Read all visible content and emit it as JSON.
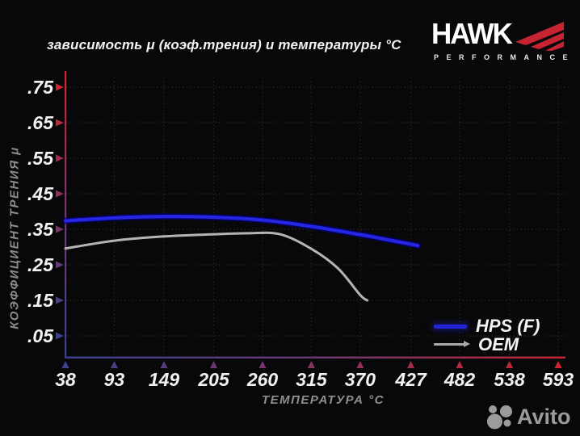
{
  "title": "зависимость μ (коэф.трения) и температуры °C",
  "logo": {
    "brand": "HAWK",
    "sub": "PERFORMANCE",
    "wing_color": "#c62430"
  },
  "watermark": {
    "label": "Avito",
    "color": "#9b9b9b"
  },
  "colors": {
    "background": "#08080a",
    "text": "#f2f2f2",
    "muted_label": "#8f8f8f",
    "axis_red": "#cf2433",
    "axis_blue": "#3a418f",
    "grid": "#2b2b2b",
    "grid_minor": "#191919",
    "hps_blue": "#2525e2",
    "oem_gray": "#b4b4b4"
  },
  "chart_data": {
    "type": "line",
    "title": "зависимость μ (коэф.трения) и температуры °C",
    "xlabel": "ТЕМПЕРАТУРА °C",
    "ylabel": "КОЭФФИЦИЕНТ ТРЕНИЯ μ",
    "x_ticks": [
      38,
      93,
      149,
      205,
      260,
      315,
      370,
      427,
      482,
      538,
      593
    ],
    "y_ticks": [
      0.75,
      0.65,
      0.55,
      0.45,
      0.35,
      0.25,
      0.15,
      0.05
    ],
    "y_tick_labels": [
      ".75",
      ".65",
      ".55",
      ".45",
      ".35",
      ".25",
      ".15",
      ".05"
    ],
    "xlim": [
      38,
      593
    ],
    "ylim": [
      0,
      0.8
    ],
    "grid": "dotted",
    "legend_position": "bottom-right",
    "series": [
      {
        "name": "HPS (F)",
        "color": "#2525e2",
        "points": [
          [
            38,
            0.374
          ],
          [
            93,
            0.382
          ],
          [
            149,
            0.386
          ],
          [
            205,
            0.384
          ],
          [
            260,
            0.376
          ],
          [
            315,
            0.358
          ],
          [
            370,
            0.335
          ],
          [
            400,
            0.321
          ],
          [
            427,
            0.308
          ],
          [
            435,
            0.304
          ]
        ]
      },
      {
        "name": "OEM",
        "color": "#b4b4b4",
        "points": [
          [
            38,
            0.296
          ],
          [
            93,
            0.318
          ],
          [
            149,
            0.33
          ],
          [
            205,
            0.336
          ],
          [
            245,
            0.339
          ],
          [
            280,
            0.336
          ],
          [
            315,
            0.295
          ],
          [
            345,
            0.24
          ],
          [
            370,
            0.165
          ],
          [
            378,
            0.15
          ]
        ]
      }
    ]
  }
}
